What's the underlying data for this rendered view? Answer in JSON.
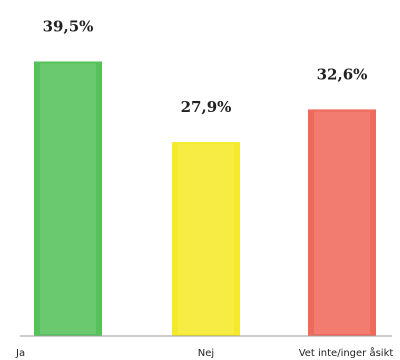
{
  "chart_data": {
    "type": "bar",
    "categories": [
      "Ja",
      "Nej",
      "Vet inte/inger åsikt"
    ],
    "values": [
      39.5,
      27.9,
      32.6
    ],
    "data_labels": [
      "39,5%",
      "27,9%",
      "32,6%"
    ],
    "colors": [
      "#56c25a",
      "#f5ea2a",
      "#ef6a5c"
    ],
    "ylim": [
      0,
      40
    ],
    "grid": false,
    "legend": "none"
  }
}
